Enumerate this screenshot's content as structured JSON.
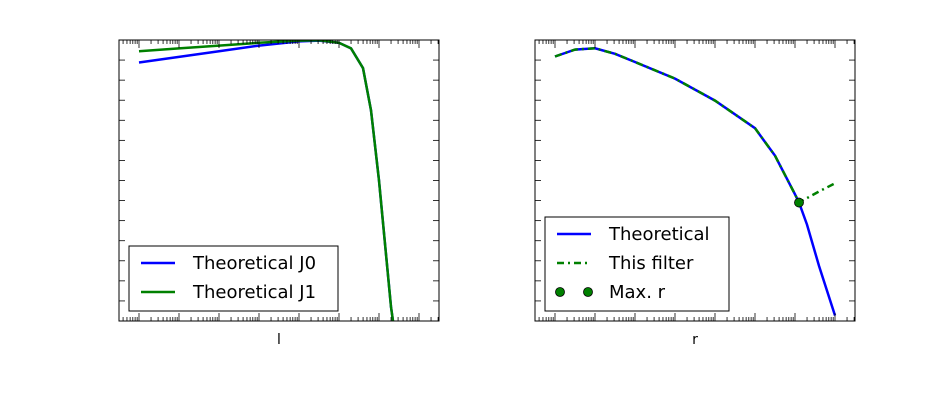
{
  "chart_data": [
    {
      "type": "line",
      "xlabel": "l",
      "ylabel": "",
      "xscale": "log",
      "ticks_labeled": false,
      "legend_position": "lower-left",
      "series": [
        {
          "name": "Theoretical J0",
          "color": "#0000ff",
          "style": "solid",
          "points": [
            [
              0,
              0.92
            ],
            [
              1,
              0.94
            ],
            [
              2,
              0.96
            ],
            [
              3,
              0.98
            ],
            [
              4,
              0.995
            ],
            [
              4.5,
              0.998
            ],
            [
              5,
              0.99
            ],
            [
              5.3,
              0.97
            ],
            [
              5.6,
              0.9
            ],
            [
              5.8,
              0.75
            ],
            [
              6,
              0.5
            ],
            [
              6.1,
              0.35
            ],
            [
              6.2,
              0.2
            ],
            [
              6.3,
              0.05
            ],
            [
              6.35,
              0.0
            ]
          ]
        },
        {
          "name": "Theoretical J1",
          "color": "#008000",
          "style": "solid",
          "points": [
            [
              0,
              0.96
            ],
            [
              1,
              0.97
            ],
            [
              2,
              0.98
            ],
            [
              3,
              0.99
            ],
            [
              4,
              0.998
            ],
            [
              4.5,
              0.999
            ],
            [
              5,
              0.99
            ],
            [
              5.3,
              0.97
            ],
            [
              5.6,
              0.9
            ],
            [
              5.8,
              0.75
            ],
            [
              6,
              0.5
            ],
            [
              6.1,
              0.35
            ],
            [
              6.2,
              0.2
            ],
            [
              6.3,
              0.05
            ],
            [
              6.35,
              0.0
            ]
          ]
        }
      ]
    },
    {
      "type": "line",
      "xlabel": "r",
      "ylabel": "",
      "xscale": "log",
      "ticks_labeled": false,
      "legend_position": "lower-left",
      "series": [
        {
          "name": "Theoretical",
          "color": "#0000ff",
          "style": "solid",
          "points": [
            [
              0,
              0.96
            ],
            [
              0.5,
              0.985
            ],
            [
              1,
              0.99
            ],
            [
              1.5,
              0.97
            ],
            [
              2,
              0.94
            ],
            [
              3,
              0.88
            ],
            [
              4,
              0.8
            ],
            [
              5,
              0.7
            ],
            [
              5.5,
              0.6
            ],
            [
              6,
              0.46
            ],
            [
              6.1,
              0.43
            ],
            [
              6.3,
              0.35
            ],
            [
              6.6,
              0.2
            ],
            [
              7,
              0.02
            ]
          ]
        },
        {
          "name": "This filter",
          "color": "#008000",
          "style": "dash-dot",
          "points": [
            [
              0,
              0.96
            ],
            [
              0.5,
              0.985
            ],
            [
              1,
              0.99
            ],
            [
              1.5,
              0.97
            ],
            [
              2,
              0.94
            ],
            [
              3,
              0.88
            ],
            [
              4,
              0.8
            ],
            [
              5,
              0.7
            ],
            [
              5.5,
              0.6
            ],
            [
              6,
              0.46
            ],
            [
              6.1,
              0.43
            ],
            [
              6.6,
              0.47
            ],
            [
              7,
              0.5
            ]
          ]
        },
        {
          "name": "Max. r",
          "color": "#008000",
          "style": "marker",
          "points": [
            [
              6.1,
              0.43
            ]
          ]
        }
      ]
    }
  ]
}
